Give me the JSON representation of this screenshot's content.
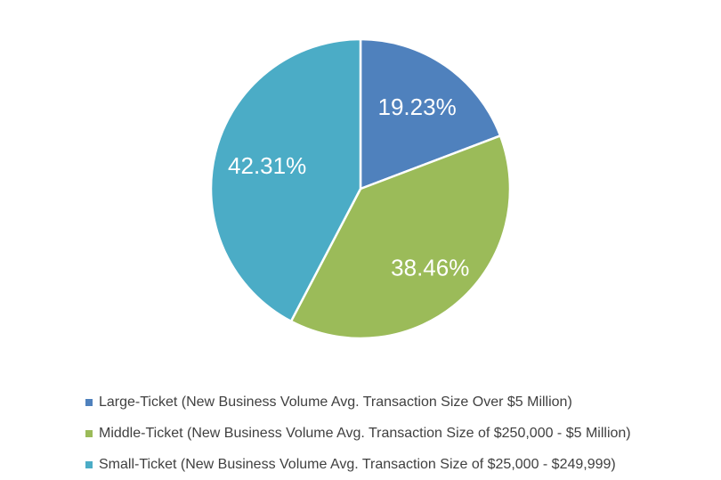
{
  "chart_data": {
    "type": "pie",
    "title": "",
    "categories": [
      "Large-Ticket (New Business Volume Avg. Transaction Size Over $5 Million)",
      "Middle-Ticket (New Business Volume Avg. Transaction Size of $250,000 - $5 Million)",
      "Small-Ticket (New Business Volume Avg. Transaction Size of $25,000 - $249,999)"
    ],
    "values": [
      19.23,
      38.46,
      42.31
    ],
    "data_labels": [
      "19.23%",
      "38.46%",
      "42.31%"
    ],
    "colors": [
      "#4f81bd",
      "#9bbb59",
      "#4bacc6"
    ],
    "legend_position": "bottom",
    "start_angle": "12 o'clock, clockwise"
  }
}
